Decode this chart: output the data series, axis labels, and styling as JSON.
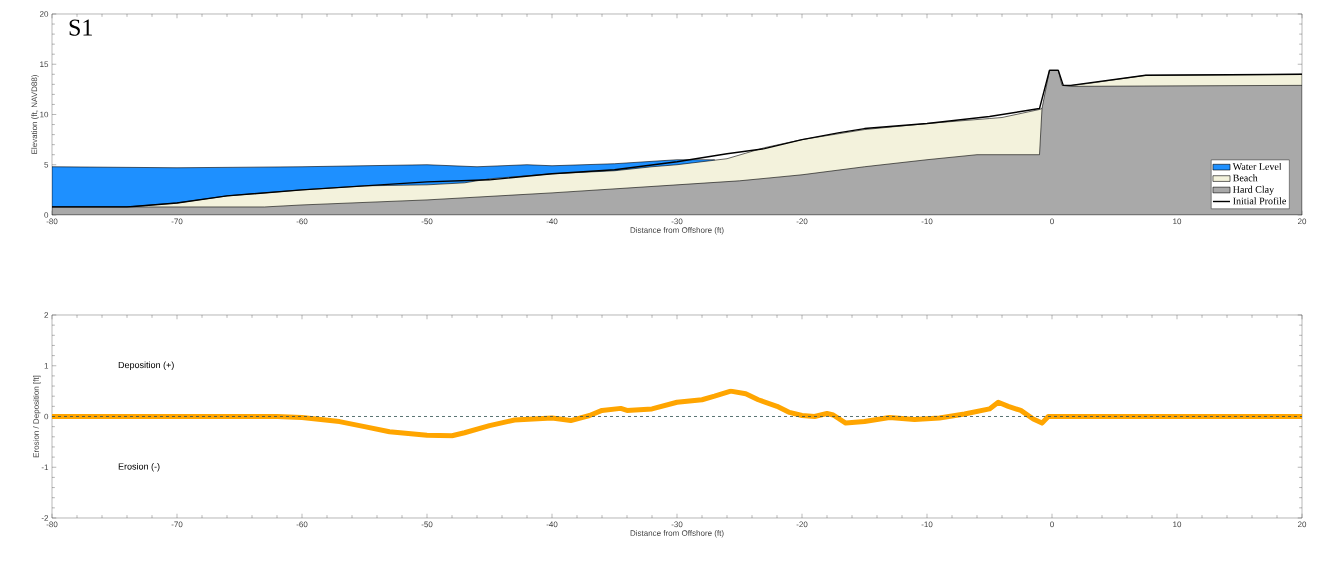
{
  "chart_data": [
    {
      "type": "area",
      "title": "S1",
      "xlabel": "Distance from Offshore (ft)",
      "ylabel": "Elevation (ft, NAVD88)",
      "xlim": [
        -80,
        20
      ],
      "ylim": [
        0,
        20
      ],
      "xticks": [
        -80,
        -70,
        -60,
        -50,
        -40,
        -30,
        -20,
        -10,
        0,
        10,
        20
      ],
      "yticks": [
        0,
        5,
        10,
        15,
        20
      ],
      "legend": "bottom right",
      "grid": false,
      "series": [
        {
          "name": "Water Level",
          "color": "#1e90ff",
          "x": [
            -80,
            -70,
            -60,
            -50,
            -46,
            -42,
            -40,
            -35,
            -30,
            -27
          ],
          "values": [
            4.8,
            4.7,
            4.8,
            5.0,
            4.8,
            5.0,
            4.9,
            5.1,
            5.5,
            5.5
          ]
        },
        {
          "name": "Beach",
          "color": "#f3f2dc",
          "x": [
            -80,
            -74,
            -70,
            -66,
            -60,
            -55,
            -50,
            -47,
            -45,
            -40,
            -35,
            -32,
            -30,
            -26,
            -23,
            -20,
            -17,
            -15,
            -10,
            -5,
            -4,
            -1,
            -0.8,
            1,
            3,
            7.5,
            20
          ],
          "values": [
            0.8,
            0.8,
            1.2,
            1.9,
            2.5,
            2.9,
            3.0,
            3.2,
            3.6,
            4.1,
            4.4,
            4.8,
            5.0,
            5.6,
            6.7,
            7.5,
            8.1,
            8.5,
            9.1,
            9.6,
            9.7,
            10.5,
            10.6,
            12.8,
            13.1,
            13.9,
            14.0
          ]
        },
        {
          "name": "Hard Clay",
          "color": "#a9a9a9",
          "x": [
            -80,
            -63,
            -60,
            -50,
            -40,
            -30,
            -25,
            -20,
            -15,
            -10,
            -6,
            -1,
            -0.8,
            -0.2,
            0.5,
            0.8,
            1.5,
            20
          ],
          "values": [
            0.8,
            0.8,
            1.0,
            1.5,
            2.2,
            3.0,
            3.4,
            4.0,
            4.8,
            5.5,
            6.0,
            6.0,
            10.6,
            14.4,
            14.4,
            12.9,
            12.8,
            12.9
          ]
        },
        {
          "name": "Initial Profile",
          "type": "line",
          "color": "#000000",
          "x": [
            -80,
            -74,
            -70,
            -66,
            -60,
            -50,
            -45,
            -40,
            -35,
            -30,
            -26,
            -23,
            -20,
            -17,
            -15,
            -10,
            -5,
            -1,
            -0.2,
            0.5,
            0.9,
            1.5,
            7.5,
            20
          ],
          "values": [
            0.8,
            0.8,
            1.2,
            1.9,
            2.5,
            3.3,
            3.5,
            4.1,
            4.5,
            5.3,
            6.1,
            6.6,
            7.5,
            8.2,
            8.6,
            9.1,
            9.8,
            10.6,
            14.4,
            14.4,
            12.9,
            12.9,
            13.9,
            14.0
          ]
        }
      ]
    },
    {
      "type": "line",
      "xlabel": "Distance from Offshore (ft)",
      "ylabel": "Erosion / Deposition [ft]",
      "xlim": [
        -80,
        20
      ],
      "ylim": [
        -2,
        2
      ],
      "xticks": [
        -80,
        -70,
        -60,
        -50,
        -40,
        -30,
        -20,
        -10,
        0,
        10,
        20
      ],
      "yticks": [
        -2,
        -1,
        0,
        1,
        2
      ],
      "legend": false,
      "grid": false,
      "annotations": [
        "Deposition (+)",
        "Erosion (-)"
      ],
      "ref_lines": [
        {
          "axis": "y",
          "value": 0,
          "color": "#2f4f4f",
          "line_style": "dashed"
        }
      ],
      "series": [
        {
          "color": "#ffa500",
          "x": [
            -80,
            -62,
            -60,
            -57,
            -55,
            -53,
            -50,
            -48,
            -47,
            -45,
            -43,
            -40,
            -38.5,
            -37,
            -36,
            -34.5,
            -34,
            -32,
            -30,
            -28,
            -27,
            -25.7,
            -24.5,
            -23.5,
            -22,
            -21,
            -20,
            -19,
            -18,
            -17.5,
            -16.5,
            -15,
            -13,
            -11,
            -9,
            -7,
            -5,
            -4.3,
            -3.5,
            -2.5,
            -1.5,
            -0.8,
            -0.3,
            20
          ],
          "values": [
            0,
            0,
            -0.02,
            -0.1,
            -0.2,
            -0.3,
            -0.37,
            -0.38,
            -0.32,
            -0.18,
            -0.07,
            -0.03,
            -0.08,
            0.02,
            0.12,
            0.16,
            0.12,
            0.15,
            0.28,
            0.33,
            0.4,
            0.5,
            0.45,
            0.33,
            0.2,
            0.08,
            0.02,
            0.0,
            0.06,
            0.03,
            -0.13,
            -0.1,
            -0.02,
            -0.06,
            -0.03,
            0.05,
            0.15,
            0.28,
            0.2,
            0.12,
            -0.05,
            -0.13,
            0,
            0
          ]
        }
      ]
    }
  ]
}
